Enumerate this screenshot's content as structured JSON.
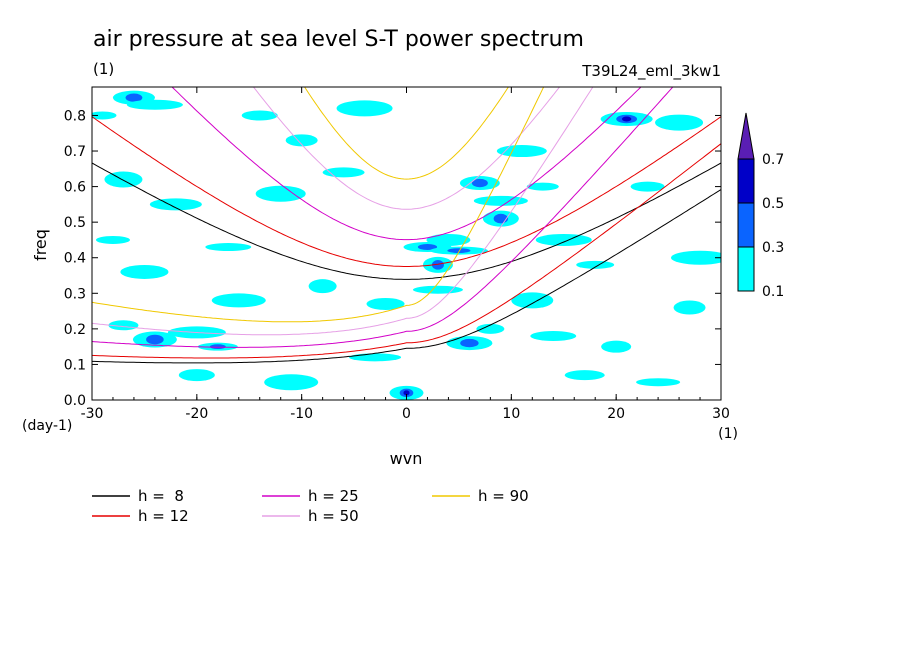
{
  "chart_data": {
    "type": "heatmap",
    "title": "air pressure at sea level S-T power spectrum",
    "subtitle_left": "(1)",
    "subtitle_right": "T39L24_eml_3kw1",
    "xlabel": "wvn",
    "ylabel": "freq",
    "x_unit": "(1)",
    "y_unit": "(day-1)",
    "xlim": [
      -30,
      30
    ],
    "ylim": [
      0,
      0.88
    ],
    "x_ticks": [
      -30,
      -20,
      -10,
      0,
      10,
      20,
      30
    ],
    "x_tick_labels": [
      "-30",
      "-20",
      "-10",
      "0",
      "10",
      "20",
      "30"
    ],
    "y_ticks": [
      0,
      0.1,
      0.2,
      0.3,
      0.4,
      0.5,
      0.6,
      0.7,
      0.8
    ],
    "y_tick_labels": [
      "0.0",
      "0.1",
      "0.2",
      "0.3",
      "0.4",
      "0.5",
      "0.6",
      "0.7",
      "0.8"
    ],
    "contour_levels": [
      0.1,
      0.3,
      0.5,
      0.7
    ],
    "colorbar_labels": [
      "0.1",
      "0.3",
      "0.5",
      "0.7"
    ],
    "colorbar_colors": [
      "#00ffff",
      "#0a64ff",
      "#0000c8",
      "#5a1eb4"
    ],
    "series": [
      {
        "name": "h =  8",
        "h": 8,
        "color": "#000000"
      },
      {
        "name": "h = 12",
        "h": 12,
        "color": "#e60000"
      },
      {
        "name": "h = 25",
        "h": 25,
        "color": "#d200c8"
      },
      {
        "name": "h = 50",
        "h": 50,
        "color": "#e6a0e6"
      },
      {
        "name": "h = 90",
        "h": 90,
        "color": "#f0c800"
      }
    ],
    "patches": [
      {
        "x": -29,
        "y": 0.8,
        "level": 1
      },
      {
        "x": -26,
        "y": 0.85,
        "level": 2
      },
      {
        "x": -24,
        "y": 0.83,
        "level": 1
      },
      {
        "x": -27,
        "y": 0.62,
        "level": 1
      },
      {
        "x": -22,
        "y": 0.55,
        "level": 1
      },
      {
        "x": -28,
        "y": 0.45,
        "level": 1
      },
      {
        "x": -25,
        "y": 0.36,
        "level": 1
      },
      {
        "x": -27,
        "y": 0.21,
        "level": 1
      },
      {
        "x": -24,
        "y": 0.17,
        "level": 2
      },
      {
        "x": -20,
        "y": 0.19,
        "level": 1
      },
      {
        "x": -18,
        "y": 0.15,
        "level": 2
      },
      {
        "x": -16,
        "y": 0.28,
        "level": 1
      },
      {
        "x": -14,
        "y": 0.8,
        "level": 1
      },
      {
        "x": -12,
        "y": 0.58,
        "level": 1
      },
      {
        "x": -10,
        "y": 0.73,
        "level": 1
      },
      {
        "x": -17,
        "y": 0.43,
        "level": 1
      },
      {
        "x": -8,
        "y": 0.32,
        "level": 1
      },
      {
        "x": -6,
        "y": 0.64,
        "level": 1
      },
      {
        "x": -4,
        "y": 0.82,
        "level": 1
      },
      {
        "x": -2,
        "y": 0.27,
        "level": 1
      },
      {
        "x": -3,
        "y": 0.12,
        "level": 1
      },
      {
        "x": 0,
        "y": 0.02,
        "level": 2
      },
      {
        "x": 2,
        "y": 0.43,
        "level": 2
      },
      {
        "x": 3,
        "y": 0.38,
        "level": 2
      },
      {
        "x": 4,
        "y": 0.45,
        "level": 1
      },
      {
        "x": 5,
        "y": 0.42,
        "level": 2
      },
      {
        "x": 7,
        "y": 0.61,
        "level": 2
      },
      {
        "x": 9,
        "y": 0.56,
        "level": 1
      },
      {
        "x": 9,
        "y": 0.51,
        "level": 2
      },
      {
        "x": 11,
        "y": 0.7,
        "level": 1
      },
      {
        "x": 13,
        "y": 0.6,
        "level": 1
      },
      {
        "x": 6,
        "y": 0.16,
        "level": 2
      },
      {
        "x": 8,
        "y": 0.2,
        "level": 1
      },
      {
        "x": 12,
        "y": 0.28,
        "level": 1
      },
      {
        "x": 15,
        "y": 0.45,
        "level": 1
      },
      {
        "x": 18,
        "y": 0.38,
        "level": 1
      },
      {
        "x": 21,
        "y": 0.79,
        "level": 2
      },
      {
        "x": 23,
        "y": 0.6,
        "level": 1
      },
      {
        "x": 26,
        "y": 0.78,
        "level": 1
      },
      {
        "x": 20,
        "y": 0.15,
        "level": 1
      },
      {
        "x": 24,
        "y": 0.05,
        "level": 1
      },
      {
        "x": 28,
        "y": 0.4,
        "level": 1
      },
      {
        "x": 17,
        "y": 0.07,
        "level": 1
      },
      {
        "x": -11,
        "y": 0.05,
        "level": 1
      },
      {
        "x": -20,
        "y": 0.07,
        "level": 1
      },
      {
        "x": 3,
        "y": 0.31,
        "level": 1
      },
      {
        "x": 27,
        "y": 0.26,
        "level": 1
      },
      {
        "x": 14,
        "y": 0.18,
        "level": 1
      }
    ]
  }
}
